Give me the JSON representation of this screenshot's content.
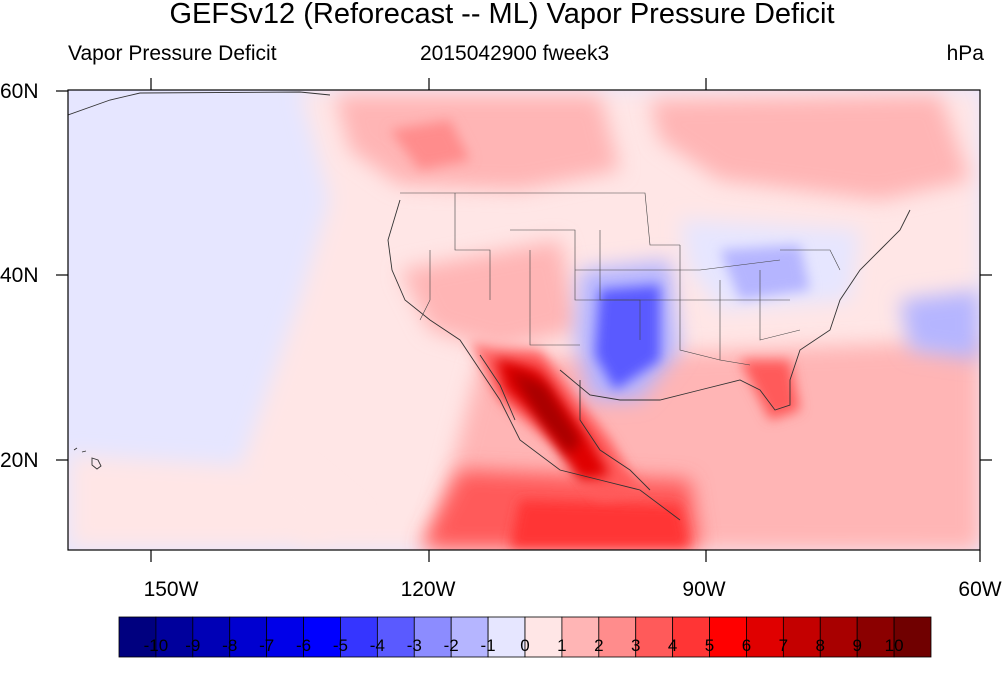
{
  "title": "GEFSv12 (Reforecast -- ML) Vapor Pressure Deficit",
  "subtitle_left": "Vapor Pressure Deficit",
  "subtitle_center": "2015042900 fweek3",
  "subtitle_right": "hPa",
  "map": {
    "projection": "cylindrical equidistant",
    "lon_range": [
      -160,
      -60
    ],
    "lat_range": [
      10,
      60
    ],
    "lat_labels": [
      "60N",
      "40N",
      "20N"
    ],
    "lon_labels": [
      "150W",
      "120W",
      "90W",
      "60W"
    ],
    "coastlines": true,
    "state_boundaries": true
  },
  "colorbar": {
    "labels": [
      "-10",
      "-9",
      "-8",
      "-7",
      "-6",
      "-5",
      "-4",
      "-3",
      "-2",
      "-1",
      "0",
      "1",
      "2",
      "3",
      "4",
      "5",
      "6",
      "7",
      "8",
      "9",
      "10"
    ],
    "colors": [
      "#00007f",
      "#00009c",
      "#0000b6",
      "#0000d0",
      "#0000e9",
      "#0000ff",
      "#3535ff",
      "#5a5aff",
      "#8c8cff",
      "#b5b5ff",
      "#e6e6ff",
      "#ffe6e6",
      "#ffb5b5",
      "#ff8c8c",
      "#ff5a5a",
      "#ff3535",
      "#ff0000",
      "#e00000",
      "#c40000",
      "#a80000",
      "#8b0000",
      "#700000"
    ]
  }
}
